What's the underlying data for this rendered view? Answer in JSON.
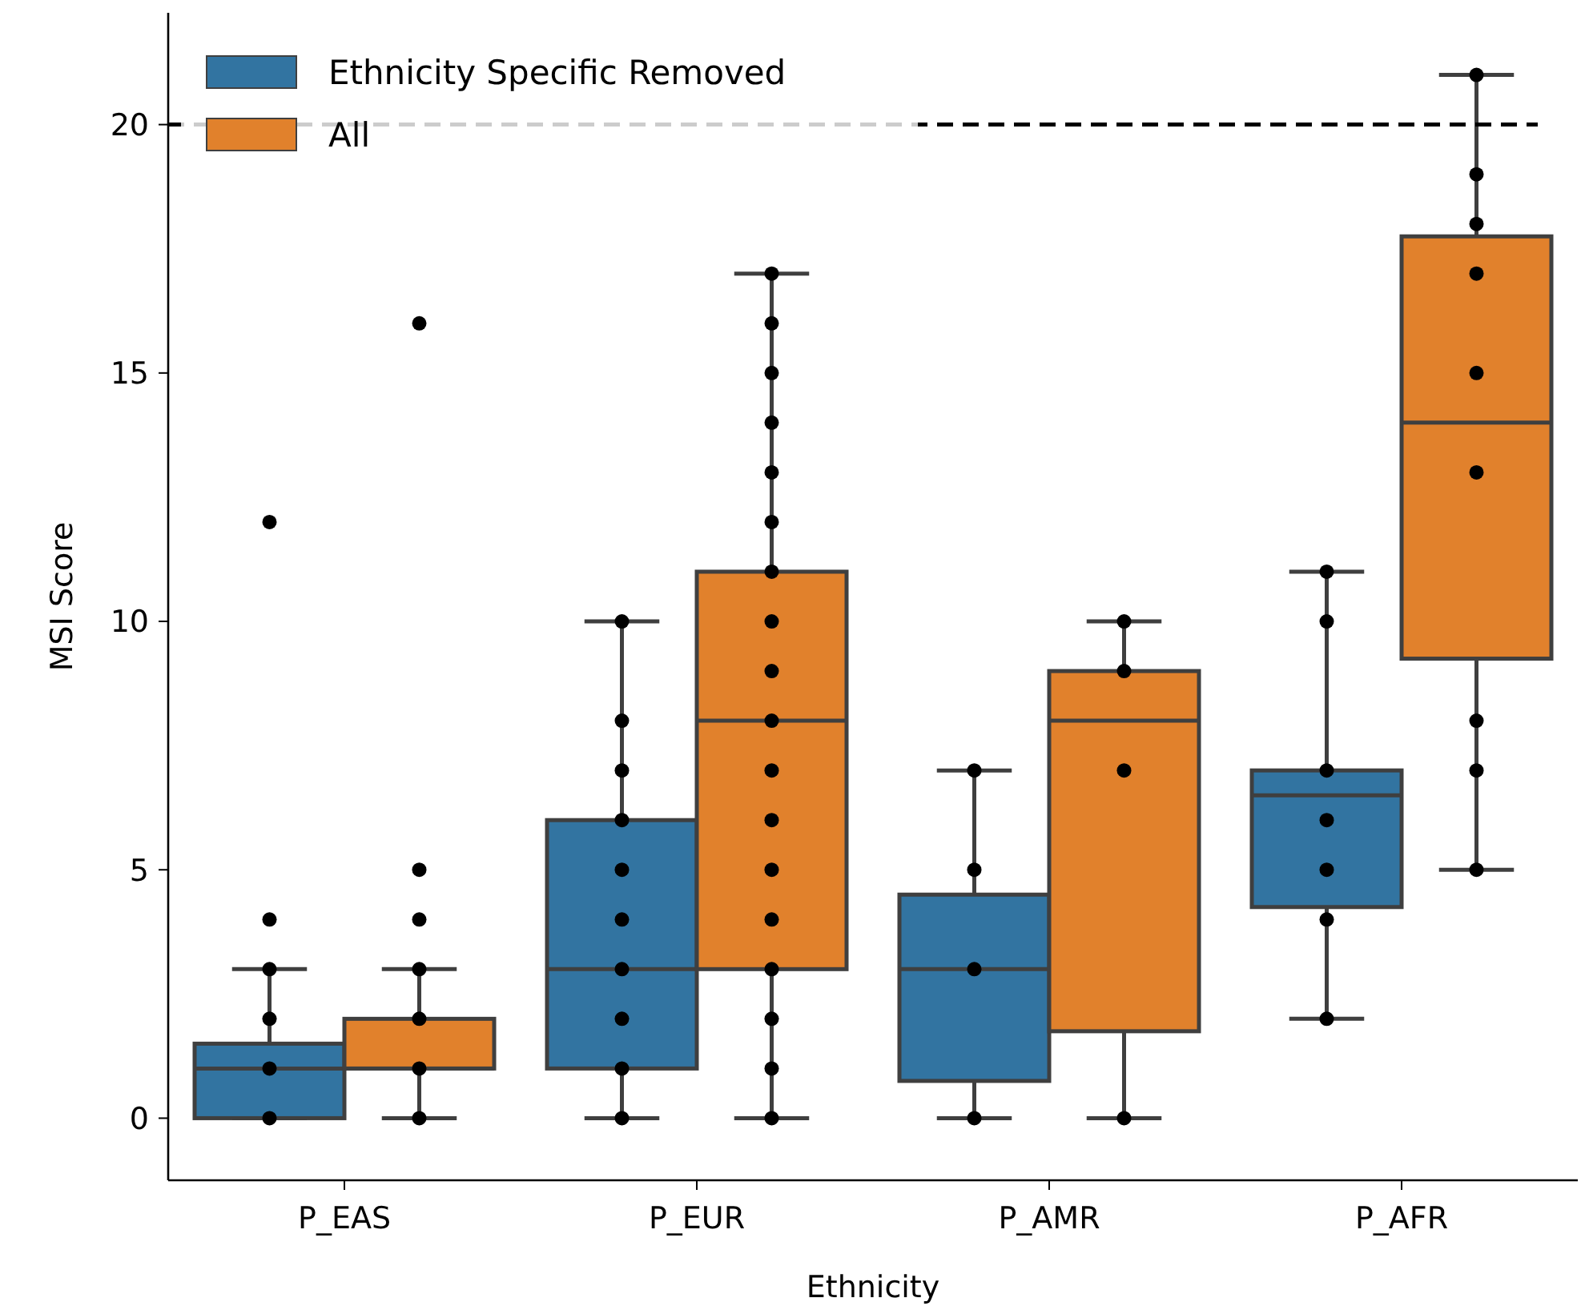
{
  "chart_data": {
    "type": "box",
    "xlabel": "Ethnicity",
    "ylabel": "MSI Score",
    "categories": [
      "P_EAS",
      "P_EUR",
      "P_AMR",
      "P_AFR"
    ],
    "ylim": [
      -1.25,
      22.25
    ],
    "yticks": [
      0,
      5,
      10,
      15,
      20
    ],
    "grid": false,
    "legend": "top left",
    "ref_lines": [
      {
        "axis": "y",
        "value": 20,
        "color": "#000000",
        "line_style": "dashed"
      }
    ],
    "series": [
      {
        "name": "Ethnicity Specific Removed",
        "color": "#3274a1",
        "boxes": [
          {
            "low": 0,
            "q1": 0,
            "median": 1,
            "q3": 1.5,
            "high": 3
          },
          {
            "low": 0,
            "q1": 1,
            "median": 3,
            "q3": 6,
            "high": 10
          },
          {
            "low": 0,
            "q1": 0.75,
            "median": 3,
            "q3": 4.5,
            "high": 7
          },
          {
            "low": 2,
            "q1": 4.25,
            "median": 6.5,
            "q3": 7,
            "high": 11
          }
        ]
      },
      {
        "name": "All",
        "color": "#e1812c",
        "boxes": [
          {
            "low": 0,
            "q1": 1,
            "median": 1,
            "q3": 2,
            "high": 3
          },
          {
            "low": 0,
            "q1": 3,
            "median": 8,
            "q3": 11,
            "high": 17
          },
          {
            "low": 0,
            "q1": 1.75,
            "median": 8,
            "q3": 9,
            "high": 10
          },
          {
            "low": 5,
            "q1": 9.25,
            "median": 14,
            "q3": 17.75,
            "high": 21
          }
        ]
      },
      {
        "type": "scatter",
        "color": "#000000",
        "x": [
          "P_EAS",
          "P_EAS",
          "P_EAS",
          "P_EAS",
          "P_EAS",
          "P_EAS",
          "P_EUR",
          "P_EUR",
          "P_EUR",
          "P_EUR",
          "P_EUR",
          "P_EUR",
          "P_EUR",
          "P_EUR",
          "P_EUR",
          "P_EUR",
          "P_AMR",
          "P_AMR",
          "P_AMR",
          "P_AMR",
          "P_AFR",
          "P_AFR",
          "P_AFR",
          "P_AFR",
          "P_AFR",
          "P_AFR",
          "P_AFR"
        ],
        "values": [
          0,
          1,
          2,
          3,
          4,
          12,
          0,
          1,
          2,
          3,
          4,
          5,
          6,
          7,
          8,
          10,
          0,
          3,
          5,
          7,
          2,
          4,
          5,
          6,
          7,
          10,
          11
        ]
      },
      {
        "type": "scatter",
        "color": "#000000",
        "x": [
          "P_EAS",
          "P_EAS",
          "P_EAS",
          "P_EAS",
          "P_EAS",
          "P_EAS",
          "P_EAS",
          "P_EUR",
          "P_EUR",
          "P_EUR",
          "P_EUR",
          "P_EUR",
          "P_EUR",
          "P_EUR",
          "P_EUR",
          "P_EUR",
          "P_EUR",
          "P_EUR",
          "P_EUR",
          "P_EUR",
          "P_EUR",
          "P_EUR",
          "P_EUR",
          "P_EUR",
          "P_EUR",
          "P_AMR",
          "P_AMR",
          "P_AMR",
          "P_AMR",
          "P_AFR",
          "P_AFR",
          "P_AFR",
          "P_AFR",
          "P_AFR",
          "P_AFR",
          "P_AFR",
          "P_AFR",
          "P_AFR"
        ],
        "values": [
          0,
          1,
          2,
          3,
          4,
          5,
          16,
          0,
          1,
          2,
          3,
          4,
          5,
          6,
          7,
          8,
          9,
          10,
          11,
          12,
          13,
          14,
          15,
          16,
          17,
          0,
          7,
          9,
          10,
          5,
          7,
          8,
          13,
          15,
          17,
          18,
          19,
          21
        ]
      }
    ]
  }
}
